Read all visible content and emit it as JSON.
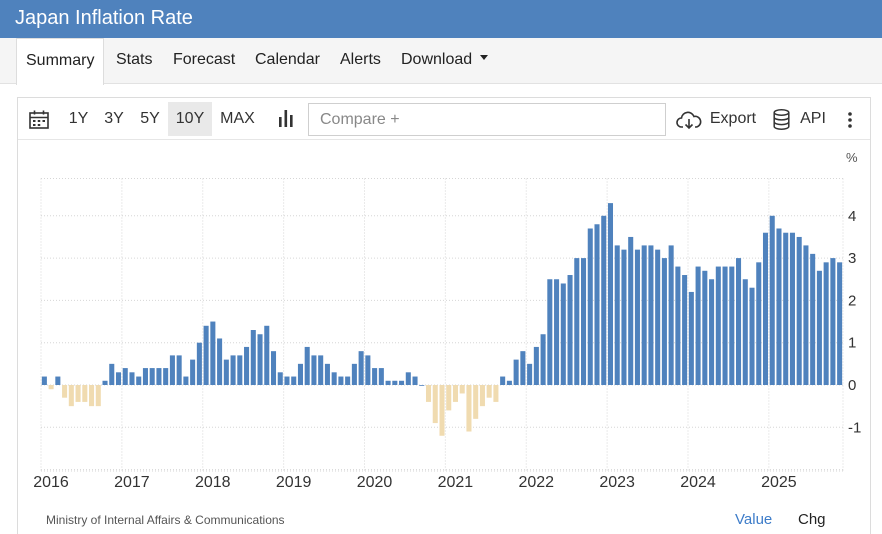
{
  "header": {
    "title": "Japan Inflation Rate"
  },
  "tabs": [
    {
      "label": "Summary"
    },
    {
      "label": "Stats"
    },
    {
      "label": "Forecast"
    },
    {
      "label": "Calendar"
    },
    {
      "label": "Alerts"
    },
    {
      "label": "Download"
    }
  ],
  "toolbar": {
    "ranges": [
      "1Y",
      "3Y",
      "5Y",
      "10Y",
      "MAX"
    ],
    "active_range": "10Y",
    "compare_placeholder": "Compare +",
    "export_label": "Export",
    "api_label": "API",
    "icons": [
      "calendar-icon",
      "bar-chart-icon",
      "cloud-download-icon",
      "database-icon",
      "more-vertical-icon"
    ]
  },
  "chart_data": {
    "type": "bar",
    "unit": "%",
    "x_tick_labels": [
      "2016",
      "2017",
      "2018",
      "2019",
      "2020",
      "2021",
      "2022",
      "2023",
      "2024",
      "2025"
    ],
    "y_tick_labels": [
      "4",
      "3",
      "2",
      "1",
      "0",
      "-1"
    ],
    "ylim": [
      -2,
      5
    ],
    "grid": true,
    "colors": {
      "positive": "#4f82bd",
      "negative": "#f0dbb0"
    },
    "start": "2016-01",
    "end": "2025-11",
    "values": [
      0.2,
      -0.1,
      0.2,
      -0.3,
      -0.5,
      -0.4,
      -0.4,
      -0.5,
      -0.5,
      0.1,
      0.5,
      0.3,
      0.4,
      0.3,
      0.2,
      0.4,
      0.4,
      0.4,
      0.4,
      0.7,
      0.7,
      0.2,
      0.6,
      1.0,
      1.4,
      1.5,
      1.1,
      0.6,
      0.7,
      0.7,
      0.9,
      1.3,
      1.2,
      1.4,
      0.8,
      0.3,
      0.2,
      0.2,
      0.5,
      0.9,
      0.7,
      0.7,
      0.5,
      0.3,
      0.2,
      0.2,
      0.5,
      0.8,
      0.7,
      0.4,
      0.4,
      0.1,
      0.1,
      0.1,
      0.3,
      0.2,
      0.0,
      -0.4,
      -0.9,
      -1.2,
      -0.6,
      -0.4,
      -0.2,
      -1.1,
      -0.8,
      -0.5,
      -0.3,
      -0.4,
      0.2,
      0.1,
      0.6,
      0.8,
      0.5,
      0.9,
      1.2,
      2.5,
      2.5,
      2.4,
      2.6,
      3.0,
      3.0,
      3.7,
      3.8,
      4.0,
      4.3,
      3.3,
      3.2,
      3.5,
      3.2,
      3.3,
      3.3,
      3.2,
      3.0,
      3.3,
      2.8,
      2.6,
      2.2,
      2.8,
      2.7,
      2.5,
      2.8,
      2.8,
      2.8,
      3.0,
      2.5,
      2.3,
      2.9,
      3.6,
      4.0,
      3.7,
      3.6,
      3.6,
      3.5,
      3.3,
      3.1,
      2.7,
      2.9,
      3.0,
      2.9
    ]
  },
  "footer": {
    "source": "Ministry of Internal Affairs & Communications",
    "modes": [
      "Value",
      "Chg"
    ]
  }
}
